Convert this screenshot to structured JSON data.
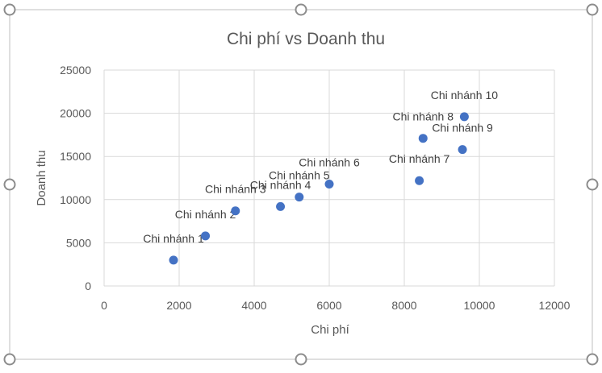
{
  "chart_data": {
    "type": "scatter",
    "title": "Chi phí vs Doanh thu",
    "xlabel": "Chi phí",
    "ylabel": "Doanh thu",
    "xlim": [
      0,
      12000
    ],
    "ylim": [
      0,
      25000
    ],
    "xticks": [
      0,
      2000,
      4000,
      6000,
      8000,
      10000,
      12000
    ],
    "yticks": [
      0,
      5000,
      10000,
      15000,
      20000,
      25000
    ],
    "grid": true,
    "legend": "none",
    "marker_color": "#4472C4",
    "points": [
      {
        "label": "Chi nhánh 1",
        "x": 1850,
        "y": 3000
      },
      {
        "label": "Chi nhánh 2",
        "x": 2700,
        "y": 5800
      },
      {
        "label": "Chi nhánh 3",
        "x": 3500,
        "y": 8700
      },
      {
        "label": "Chi nhánh 4",
        "x": 4700,
        "y": 9200
      },
      {
        "label": "Chi nhánh 5",
        "x": 5200,
        "y": 10300
      },
      {
        "label": "Chi nhánh 6",
        "x": 6000,
        "y": 11800
      },
      {
        "label": "Chi nhánh 7",
        "x": 8400,
        "y": 12200
      },
      {
        "label": "Chi nhánh 8",
        "x": 8500,
        "y": 17100
      },
      {
        "label": "Chi nhánh 9",
        "x": 9550,
        "y": 15800
      },
      {
        "label": "Chi nhánh 10",
        "x": 9600,
        "y": 19600
      }
    ]
  }
}
